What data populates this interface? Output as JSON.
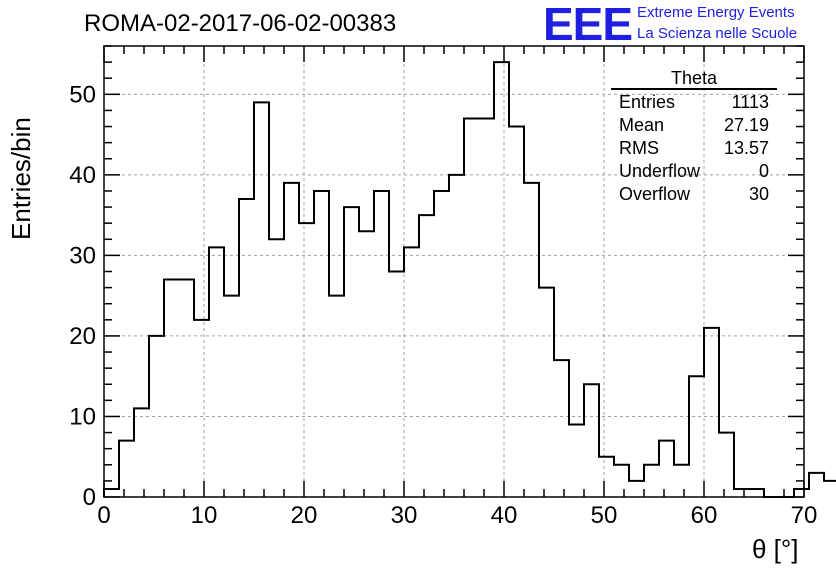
{
  "header": {
    "title": "ROMA-02-2017-06-02-00383",
    "logo_text": "EEE",
    "brand_line1": "Extreme Energy Events",
    "brand_line2": "La Scienza nelle Scuole",
    "brand_color": "#1f1fe0"
  },
  "stats_box": {
    "title": "Theta",
    "rows": [
      {
        "label": "Entries",
        "value": "1113"
      },
      {
        "label": "Mean",
        "value": "27.19"
      },
      {
        "label": "RMS",
        "value": "13.57"
      },
      {
        "label": "Underflow",
        "value": "0"
      },
      {
        "label": "Overflow",
        "value": "30"
      }
    ]
  },
  "chart_data": {
    "type": "bar",
    "style": "step-histogram",
    "title": "ROMA-02-2017-06-02-00383",
    "xlabel": "θ [°]",
    "ylabel": "Entries/bin",
    "xlim": [
      0,
      70
    ],
    "ylim": [
      0,
      56
    ],
    "bin_width": 1.5,
    "bin_start": 0,
    "values": [
      1,
      7,
      11,
      20,
      27,
      27,
      22,
      31,
      25,
      37,
      49,
      32,
      39,
      34,
      38,
      25,
      36,
      33,
      38,
      28,
      31,
      35,
      38,
      40,
      47,
      47,
      54,
      46,
      39,
      26,
      17,
      9,
      14,
      5,
      4,
      2,
      4,
      7,
      4,
      15,
      21,
      8,
      1,
      1,
      0,
      0,
      1,
      3,
      2
    ],
    "xticks": [
      0,
      10,
      20,
      30,
      40,
      50,
      60,
      70
    ],
    "yticks": [
      0,
      10,
      20,
      30,
      40,
      50
    ],
    "grid": true,
    "line_color": "#000000"
  }
}
